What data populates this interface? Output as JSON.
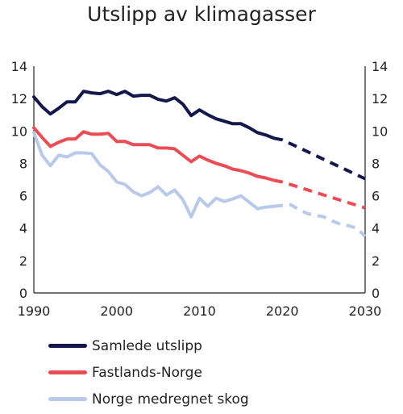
{
  "chart_data": {
    "type": "line",
    "title": "Utslipp av klimagasser",
    "xlim": [
      1990,
      2030
    ],
    "ylim": [
      0,
      14
    ],
    "yticks": [
      0,
      2,
      4,
      6,
      8,
      10,
      12,
      14
    ],
    "xticks": [
      1990,
      2000,
      2010,
      2020,
      2030
    ],
    "ytick_labels": [
      "0",
      "2",
      "4",
      "6",
      "8",
      "10",
      "12",
      "14"
    ],
    "xtick_labels": [
      "1990",
      "2000",
      "2010",
      "2020",
      "2030"
    ],
    "grid": false,
    "legend_position": "bottom",
    "series": [
      {
        "name": "Samlede utslipp",
        "color": "#13174a",
        "historical": {
          "x": [
            1990,
            1991,
            1992,
            1993,
            1994,
            1995,
            1996,
            1997,
            1998,
            1999,
            2000,
            2001,
            2002,
            2003,
            2004,
            2005,
            2006,
            2007,
            2008,
            2009,
            2010,
            2011,
            2012,
            2013,
            2014,
            2015,
            2016,
            2017,
            2018,
            2019
          ],
          "y": [
            12.1,
            11.5,
            11.05,
            11.4,
            11.8,
            11.8,
            12.45,
            12.35,
            12.3,
            12.45,
            12.25,
            12.45,
            12.15,
            12.2,
            12.2,
            11.95,
            11.85,
            12.05,
            11.65,
            10.95,
            11.3,
            11.0,
            10.75,
            10.6,
            10.45,
            10.45,
            10.2,
            9.9,
            9.75,
            9.55
          ]
        },
        "projection": {
          "x": [
            2019,
            2020,
            2025,
            2030
          ],
          "y": [
            9.55,
            9.45,
            8.25,
            7.05
          ]
        }
      },
      {
        "name": "Fastlands-Norge",
        "color": "#e94d55",
        "historical": {
          "x": [
            1990,
            1991,
            1992,
            1993,
            1994,
            1995,
            1996,
            1997,
            1998,
            1999,
            2000,
            2001,
            2002,
            2003,
            2004,
            2005,
            2006,
            2007,
            2008,
            2009,
            2010,
            2011,
            2012,
            2013,
            2014,
            2015,
            2016,
            2017,
            2018,
            2019
          ],
          "y": [
            10.2,
            9.6,
            9.05,
            9.3,
            9.5,
            9.5,
            9.95,
            9.8,
            9.8,
            9.85,
            9.35,
            9.35,
            9.15,
            9.15,
            9.15,
            8.95,
            8.95,
            8.9,
            8.5,
            8.1,
            8.45,
            8.2,
            8.0,
            7.85,
            7.65,
            7.55,
            7.4,
            7.2,
            7.1,
            6.95
          ]
        },
        "projection": {
          "x": [
            2019,
            2020,
            2025,
            2030
          ],
          "y": [
            6.95,
            6.85,
            6.05,
            5.25
          ]
        }
      },
      {
        "name": "Norge medregnet skog",
        "color": "#b8c9ea",
        "historical": {
          "x": [
            1990,
            1991,
            1992,
            1993,
            1994,
            1995,
            1996,
            1997,
            1998,
            1999,
            2000,
            2001,
            2002,
            2003,
            2004,
            2005,
            2006,
            2007,
            2008,
            2009,
            2010,
            2011,
            2012,
            2013,
            2014,
            2015,
            2016,
            2017,
            2018,
            2019
          ],
          "y": [
            9.9,
            8.5,
            7.85,
            8.5,
            8.4,
            8.65,
            8.65,
            8.6,
            7.9,
            7.5,
            6.85,
            6.7,
            6.25,
            6.0,
            6.2,
            6.55,
            6.05,
            6.35,
            5.75,
            4.7,
            5.85,
            5.35,
            5.85,
            5.65,
            5.8,
            6.0,
            5.6,
            5.2,
            5.3,
            5.35
          ]
        },
        "projection": {
          "x": [
            2019,
            2021,
            2022,
            2023,
            2024,
            2025,
            2026,
            2027,
            2028,
            2029,
            2030
          ],
          "y": [
            5.35,
            5.45,
            5.15,
            4.9,
            4.8,
            4.7,
            4.45,
            4.25,
            4.15,
            4.0,
            3.5
          ]
        }
      }
    ]
  }
}
